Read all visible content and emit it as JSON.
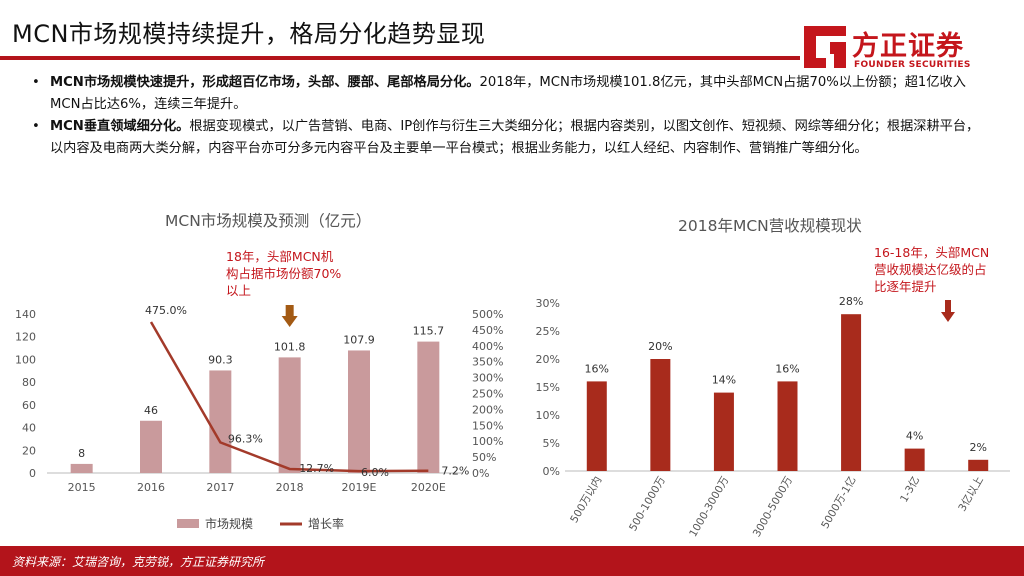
{
  "page": {
    "title": "MCN市场规模持续提升，格局分化趋势显现",
    "logo_cn": "方正证券",
    "logo_en": "FOUNDER SECURITIES",
    "source": "资料来源：艾瑞咨询，克劳锐，方正证券研究所"
  },
  "bullets": [
    {
      "bold": "MCN市场规模快速提升，形成超百亿市场，头部、腰部、尾部格局分化。",
      "text": "2018年，MCN市场规模101.8亿元，其中头部MCN占据70%以上份额；超1亿收入MCN占比达6%，连续三年提升。"
    },
    {
      "bold": "MCN垂直领域细分化。",
      "text": "根据变现模式，以广告营销、电商、IP创作与衍生三大类细分化；根据内容类别，以图文创作、短视频、网综等细分化；根据深耕平台，以内容及电商两大类分解，内容平台亦可分多元内容平台及主要单一平台模式；根据业务能力，以红人经纪、内容制作、营销推广等细分化。"
    }
  ],
  "colors": {
    "accent": "#b3141b",
    "bar_left": "#c99a9c",
    "line_left": "#a33a2a",
    "bar_right": "#a82b1c",
    "annotation": "#c4161c"
  },
  "chart_data": [
    {
      "type": "bar",
      "title": "MCN市场规模及预测（亿元）",
      "categories": [
        "2015",
        "2016",
        "2017",
        "2018",
        "2019E",
        "2020E"
      ],
      "series": [
        {
          "name": "市场规模",
          "type": "bar",
          "axis": "left",
          "values": [
            8,
            46,
            90.3,
            101.8,
            107.9,
            115.7
          ],
          "labels": [
            "8",
            "46",
            "90.3",
            "101.8",
            "107.9",
            "115.7"
          ]
        },
        {
          "name": "增长率",
          "type": "line",
          "axis": "right",
          "values": [
            475.0,
            96.3,
            12.7,
            6.0,
            7.2
          ],
          "x": [
            "2016",
            "2017",
            "2018",
            "2019E",
            "2020E"
          ],
          "labels": [
            "475.0%",
            "96.3%",
            "12.7%",
            "6.0%",
            "7.2%"
          ]
        }
      ],
      "ylim_left": [
        0,
        140
      ],
      "yticks_left": [
        "0",
        "20",
        "40",
        "60",
        "80",
        "100",
        "120",
        "140"
      ],
      "ylim_right": [
        0,
        500
      ],
      "yticks_right": [
        "0%",
        "50%",
        "100%",
        "150%",
        "200%",
        "250%",
        "300%",
        "350%",
        "400%",
        "450%",
        "500%"
      ],
      "legend": [
        "市场规模",
        "增长率"
      ],
      "legend_position": "bottom",
      "annotation": {
        "lines": [
          "18年，头部MCN机",
          "构占据市场份额70%",
          "以上"
        ],
        "arrow": "down"
      },
      "grid": false
    },
    {
      "type": "bar",
      "title": "2018年MCN营收规模现状",
      "categories": [
        "500万以内",
        "500-1000万",
        "1000-3000万",
        "3000-5000万",
        "5000万-1亿",
        "1-3亿",
        "3亿以上"
      ],
      "values": [
        16,
        20,
        14,
        16,
        28,
        4,
        2
      ],
      "labels": [
        "16%",
        "20%",
        "14%",
        "16%",
        "28%",
        "4%",
        "2%"
      ],
      "ylim": [
        0,
        30
      ],
      "yticks": [
        "0%",
        "5%",
        "10%",
        "15%",
        "20%",
        "25%",
        "30%"
      ],
      "annotation": {
        "lines": [
          "16-18年，头部MCN",
          "营收规模达亿级的占",
          "比逐年提升"
        ],
        "arrow": "down"
      },
      "grid": false
    }
  ]
}
